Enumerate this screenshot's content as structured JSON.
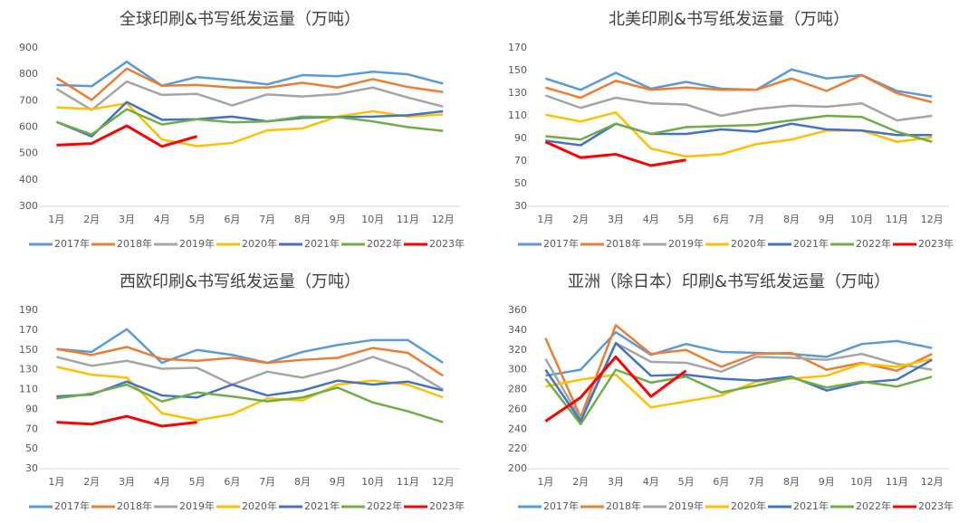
{
  "chart_data": [
    {
      "type": "line",
      "title": "全球印刷&书写纸发运量（万吨）",
      "categories": [
        "1月",
        "2月",
        "3月",
        "4月",
        "5月",
        "6月",
        "7月",
        "8月",
        "9月",
        "10月",
        "11月",
        "12月"
      ],
      "ylim": [
        300,
        900
      ],
      "yticks": [
        300,
        400,
        500,
        600,
        700,
        800,
        900
      ],
      "legend": "bottom",
      "series": [
        {
          "name": "2017年",
          "color": "#5b9bd5",
          "values": [
            760,
            755,
            848,
            757,
            790,
            778,
            762,
            797,
            793,
            810,
            800,
            765
          ]
        },
        {
          "name": "2018年",
          "color": "#ed7d31",
          "values": [
            787,
            703,
            822,
            757,
            760,
            750,
            750,
            768,
            750,
            782,
            752,
            733
          ]
        },
        {
          "name": "2019年",
          "color": "#a5a5a5",
          "values": [
            745,
            665,
            773,
            722,
            726,
            682,
            724,
            716,
            725,
            750,
            712,
            678
          ]
        },
        {
          "name": "2020年",
          "color": "#ffc000",
          "values": [
            675,
            668,
            690,
            553,
            528,
            540,
            588,
            595,
            640,
            660,
            640,
            648
          ]
        },
        {
          "name": "2021年",
          "color": "#4472c4",
          "values": [
            620,
            565,
            695,
            628,
            630,
            640,
            622,
            635,
            638,
            640,
            645,
            660
          ]
        },
        {
          "name": "2022年",
          "color": "#70ad47",
          "values": [
            620,
            572,
            668,
            610,
            630,
            618,
            622,
            640,
            638,
            622,
            600,
            586
          ]
        },
        {
          "name": "2023年",
          "color": "#ff0000",
          "values": [
            532,
            538,
            605,
            527,
            565,
            null,
            null,
            null,
            null,
            null,
            null,
            null
          ]
        }
      ]
    },
    {
      "type": "line",
      "title": "北美印刷&书写纸发运量（万吨）",
      "categories": [
        "1月",
        "2月",
        "3月",
        "4月",
        "5月",
        "6月",
        "7月",
        "8月",
        "9月",
        "10月",
        "11月",
        "12月"
      ],
      "ylim": [
        30,
        170
      ],
      "yticks": [
        30,
        50,
        70,
        90,
        110,
        130,
        150,
        170
      ],
      "legend": "bottom",
      "series": [
        {
          "name": "2017年",
          "color": "#5b9bd5",
          "values": [
            143,
            133,
            148,
            134,
            140,
            134,
            133,
            151,
            143,
            146,
            132,
            127
          ]
        },
        {
          "name": "2018年",
          "color": "#ed7d31",
          "values": [
            135,
            126,
            141,
            133,
            135,
            133,
            133,
            143,
            132,
            146,
            130,
            122
          ]
        },
        {
          "name": "2019年",
          "color": "#a5a5a5",
          "values": [
            128,
            117,
            126,
            121,
            120,
            110,
            116,
            119,
            118,
            121,
            106,
            110
          ]
        },
        {
          "name": "2020年",
          "color": "#ffc000",
          "values": [
            111,
            105,
            113,
            81,
            74,
            76,
            85,
            89,
            97,
            97,
            87,
            91
          ]
        },
        {
          "name": "2021年",
          "color": "#4472c4",
          "values": [
            88,
            84,
            103,
            94,
            94,
            98,
            96,
            103,
            98,
            97,
            93,
            93
          ]
        },
        {
          "name": "2022年",
          "color": "#70ad47",
          "values": [
            92,
            89,
            103,
            94,
            100,
            101,
            102,
            106,
            110,
            109,
            96,
            87
          ]
        },
        {
          "name": "2023年",
          "color": "#ff0000",
          "values": [
            87,
            73,
            76,
            66,
            71,
            null,
            null,
            null,
            null,
            null,
            null,
            null
          ]
        }
      ]
    },
    {
      "type": "line",
      "title": "西欧印刷&书写纸发运量（万吨）",
      "categories": [
        "1月",
        "2月",
        "3月",
        "4月",
        "5月",
        "6月",
        "7月",
        "8月",
        "9月",
        "10月",
        "11月",
        "12月"
      ],
      "ylim": [
        30,
        190
      ],
      "yticks": [
        30,
        50,
        70,
        90,
        110,
        130,
        150,
        170,
        190
      ],
      "legend": "bottom",
      "series": [
        {
          "name": "2017年",
          "color": "#5b9bd5",
          "values": [
            151,
            148,
            171,
            137,
            150,
            145,
            137,
            148,
            155,
            160,
            160,
            137
          ]
        },
        {
          "name": "2018年",
          "color": "#ed7d31",
          "values": [
            151,
            145,
            153,
            141,
            139,
            142,
            137,
            140,
            142,
            152,
            147,
            124
          ]
        },
        {
          "name": "2019年",
          "color": "#a5a5a5",
          "values": [
            143,
            134,
            139,
            131,
            132,
            115,
            128,
            122,
            131,
            143,
            131,
            110
          ]
        },
        {
          "name": "2020年",
          "color": "#ffc000",
          "values": [
            133,
            125,
            122,
            86,
            79,
            85,
            101,
            99,
            115,
            119,
            115,
            102
          ]
        },
        {
          "name": "2021年",
          "color": "#4472c4",
          "values": [
            103,
            105,
            118,
            104,
            102,
            115,
            104,
            109,
            119,
            115,
            118,
            109
          ]
        },
        {
          "name": "2022年",
          "color": "#70ad47",
          "values": [
            101,
            106,
            115,
            98,
            107,
            103,
            98,
            102,
            112,
            97,
            88,
            77
          ]
        },
        {
          "name": "2023年",
          "color": "#ff0000",
          "values": [
            77,
            75,
            83,
            73,
            77,
            null,
            null,
            null,
            null,
            null,
            null,
            null
          ]
        }
      ]
    },
    {
      "type": "line",
      "title": "亚洲（除日本）印刷&书写纸发运量（万吨）",
      "categories": [
        "1月",
        "2月",
        "3月",
        "4月",
        "5月",
        "6月",
        "7月",
        "8月",
        "9月",
        "10月",
        "11月",
        "12月"
      ],
      "ylim": [
        200,
        360
      ],
      "yticks": [
        200,
        220,
        240,
        260,
        280,
        300,
        320,
        340,
        360
      ],
      "legend": "bottom",
      "series": [
        {
          "name": "2017年",
          "color": "#5b9bd5",
          "values": [
            294,
            300,
            338,
            315,
            326,
            318,
            317,
            316,
            313,
            326,
            329,
            322
          ]
        },
        {
          "name": "2018年",
          "color": "#ed7d31",
          "values": [
            332,
            252,
            345,
            316,
            320,
            303,
            316,
            317,
            300,
            307,
            299,
            316
          ]
        },
        {
          "name": "2019年",
          "color": "#a5a5a5",
          "values": [
            311,
            250,
            327,
            308,
            307,
            298,
            313,
            312,
            310,
            316,
            306,
            300
          ]
        },
        {
          "name": "2020年",
          "color": "#ffc000",
          "values": [
            283,
            290,
            295,
            262,
            268,
            274,
            288,
            291,
            294,
            306,
            303,
            311
          ]
        },
        {
          "name": "2021年",
          "color": "#4472c4",
          "values": [
            300,
            248,
            327,
            294,
            295,
            291,
            289,
            293,
            279,
            287,
            290,
            310
          ]
        },
        {
          "name": "2022年",
          "color": "#70ad47",
          "values": [
            291,
            245,
            300,
            287,
            293,
            277,
            284,
            292,
            282,
            288,
            283,
            293
          ]
        },
        {
          "name": "2023年",
          "color": "#ff0000",
          "values": [
            248,
            272,
            313,
            273,
            299,
            null,
            null,
            null,
            null,
            null,
            null,
            null
          ]
        }
      ]
    }
  ]
}
